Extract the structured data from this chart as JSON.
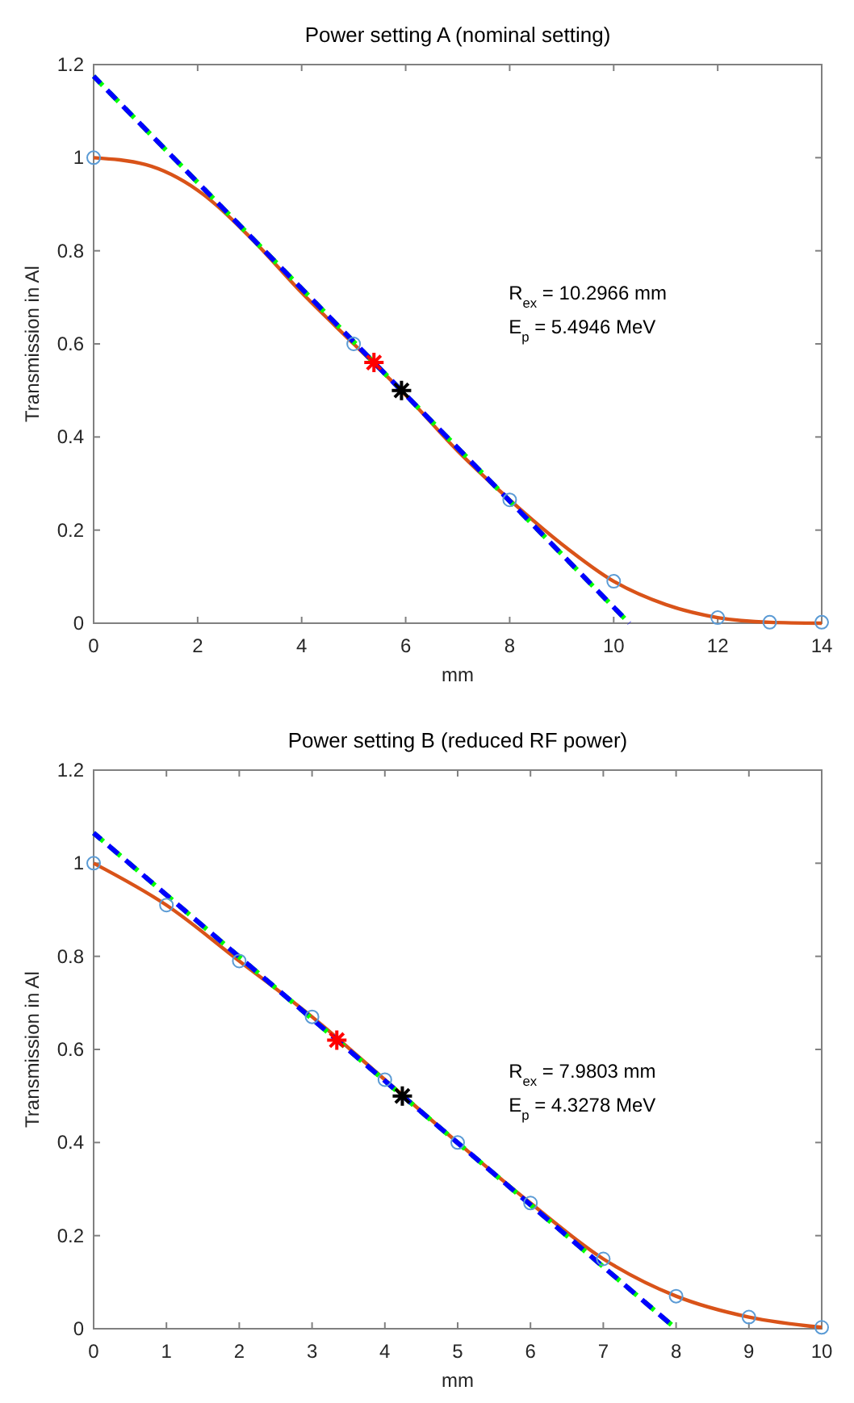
{
  "chart_data": [
    {
      "type": "line",
      "title": "Power setting A (nominal setting)",
      "xlabel": "mm",
      "ylabel": "Transmission in Al",
      "xlim": [
        0,
        14
      ],
      "ylim": [
        0,
        1.2
      ],
      "xticks": [
        0,
        2,
        4,
        6,
        8,
        10,
        12,
        14
      ],
      "yticks": [
        0,
        0.2,
        0.4,
        0.6,
        0.8,
        1,
        1.2
      ],
      "annotations": [
        "R$_{ex}$ = 10.2966 mm",
        "E$_{p}$ = 5.4946 MeV"
      ],
      "series": [
        {
          "color": "#d95319",
          "x": [
            0,
            1,
            2,
            3,
            4,
            5,
            6,
            7,
            8,
            9,
            10,
            11,
            12,
            13,
            14
          ],
          "values": [
            1,
            0.985,
            0.93,
            0.83,
            0.71,
            0.6,
            0.49,
            0.37,
            0.265,
            0.17,
            0.09,
            0.04,
            0.012,
            0.002,
            0
          ],
          "line_style": "solid"
        },
        {
          "color": "#00ff00",
          "x": [
            0,
            10.3
          ],
          "values": [
            1.175,
            0
          ],
          "line_style": "dashed"
        },
        {
          "color": "#0000ff",
          "x": [
            0,
            10.3
          ],
          "values": [
            1.175,
            0
          ],
          "line_style": "dashed"
        },
        {
          "type": "scatter",
          "color": "#5b9bd5",
          "x": [
            0,
            5,
            8,
            10,
            12,
            13,
            14
          ],
          "values": [
            1,
            0.6,
            0.265,
            0.09,
            0.012,
            0.002,
            0.002
          ],
          "marker": "circle"
        },
        {
          "type": "scatter",
          "color": "#ff0000",
          "x": [
            5.39
          ],
          "values": [
            0.56
          ],
          "marker": "cross"
        },
        {
          "type": "scatter",
          "color": "#000000",
          "x": [
            5.92
          ],
          "values": [
            0.5
          ],
          "marker": "cross"
        }
      ]
    },
    {
      "type": "line",
      "title": "Power setting B (reduced RF power)",
      "xlabel": "mm",
      "ylabel": "Transmission in Al",
      "xlim": [
        0,
        10
      ],
      "ylim": [
        0,
        1.2
      ],
      "xticks": [
        0,
        1,
        2,
        3,
        4,
        5,
        6,
        7,
        8,
        9,
        10
      ],
      "yticks": [
        0,
        0.2,
        0.4,
        0.6,
        0.8,
        1,
        1.2
      ],
      "annotations": [
        "R$_{ex}$ = 7.9803 mm",
        "E$_{p}$ = 4.3278 MeV"
      ],
      "series": [
        {
          "color": "#d95319",
          "x": [
            0,
            1,
            2,
            3,
            4,
            5,
            6,
            7,
            8,
            9,
            10
          ],
          "values": [
            1,
            0.91,
            0.79,
            0.67,
            0.535,
            0.4,
            0.27,
            0.15,
            0.07,
            0.025,
            0.003
          ],
          "line_style": "solid"
        },
        {
          "color": "#00ff00",
          "x": [
            0,
            8
          ],
          "values": [
            1.065,
            0
          ],
          "line_style": "dashed"
        },
        {
          "color": "#0000ff",
          "x": [
            0,
            8
          ],
          "values": [
            1.065,
            0
          ],
          "line_style": "dashed"
        },
        {
          "type": "scatter",
          "color": "#5b9bd5",
          "x": [
            0,
            1,
            2,
            3,
            4,
            5,
            6,
            7,
            8,
            9,
            10
          ],
          "values": [
            1,
            0.91,
            0.79,
            0.67,
            0.535,
            0.4,
            0.27,
            0.15,
            0.07,
            0.025,
            0.003
          ],
          "marker": "circle"
        },
        {
          "type": "scatter",
          "color": "#ff0000",
          "x": [
            3.34
          ],
          "values": [
            0.62
          ],
          "marker": "cross"
        },
        {
          "type": "scatter",
          "color": "#000000",
          "x": [
            4.24
          ],
          "values": [
            0.5
          ],
          "marker": "cross"
        }
      ]
    }
  ]
}
